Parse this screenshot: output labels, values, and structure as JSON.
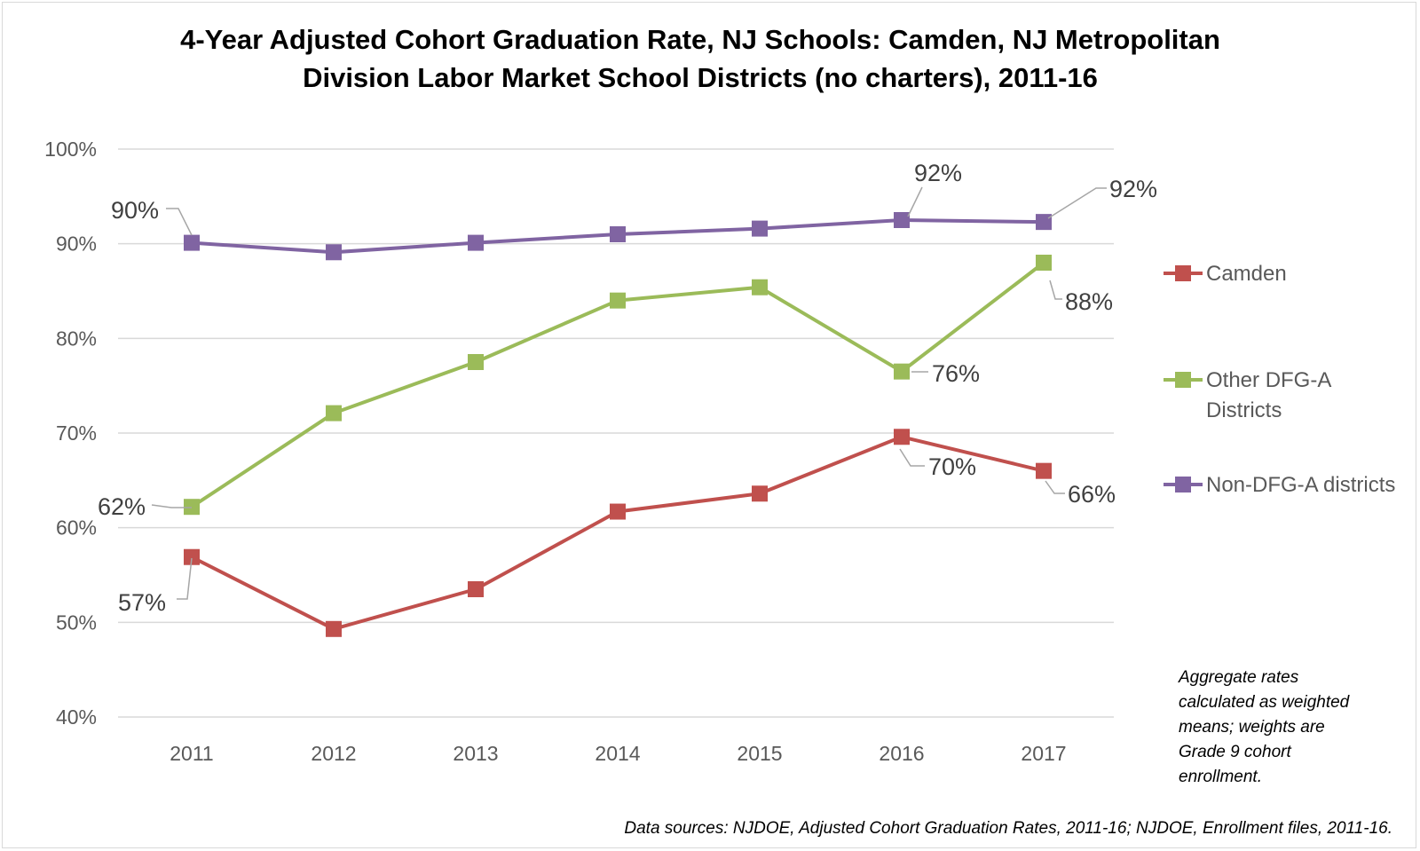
{
  "chart_data": {
    "type": "line",
    "title_lines": [
      "4-Year Adjusted Cohort Graduation Rate, NJ Schools: Camden, NJ Metropolitan",
      "Division Labor Market School Districts (no charters), 2011-16"
    ],
    "categories": [
      "2011",
      "2012",
      "2013",
      "2014",
      "2015",
      "2016",
      "2017"
    ],
    "y_ticks": [
      "40%",
      "50%",
      "60%",
      "70%",
      "80%",
      "90%",
      "100%"
    ],
    "ylim": [
      40,
      100
    ],
    "grid": true,
    "legend_position": "right",
    "series": [
      {
        "name": "Camden",
        "legend_lines": [
          "Camden"
        ],
        "color": "#c0504d",
        "values": [
          56.9,
          49.3,
          53.5,
          61.7,
          63.6,
          69.6,
          66.0
        ],
        "data_labels": [
          {
            "index": 0,
            "text": "57%"
          },
          {
            "index": 5,
            "text": "70%"
          },
          {
            "index": 6,
            "text": "66%"
          }
        ]
      },
      {
        "name": "Other DFG-A Districts",
        "legend_lines": [
          "Other DFG-A",
          "Districts"
        ],
        "color": "#9bbb59",
        "values": [
          62.2,
          72.1,
          77.5,
          84.0,
          85.4,
          76.5,
          88.0
        ],
        "data_labels": [
          {
            "index": 0,
            "text": "62%"
          },
          {
            "index": 5,
            "text": "76%"
          },
          {
            "index": 6,
            "text": "88%"
          }
        ]
      },
      {
        "name": "Non-DFG-A districts",
        "legend_lines": [
          "Non-DFG-A districts"
        ],
        "color": "#8064a2",
        "values": [
          90.1,
          89.1,
          90.1,
          91.0,
          91.6,
          92.5,
          92.3
        ],
        "data_labels": [
          {
            "index": 0,
            "text": "90%"
          },
          {
            "index": 5,
            "text": "92%"
          },
          {
            "index": 6,
            "text": "92%"
          }
        ]
      }
    ],
    "annotation_lines": [
      "Aggregate rates",
      "calculated as weighted",
      "means; weights are",
      "Grade 9 cohort",
      "enrollment."
    ],
    "source": "Data sources: NJDOE, Adjusted Cohort Graduation Rates, 2011-16; NJDOE,  Enrollment files, 2011-16."
  }
}
